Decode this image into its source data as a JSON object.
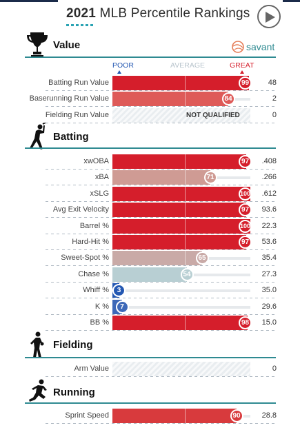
{
  "header": {
    "title_year": "2021",
    "title_rest": " MLB Percentile Rankings",
    "play_icon": "play-icon"
  },
  "brand": {
    "name": "savant",
    "icon": "savant-logo-icon"
  },
  "scale": {
    "poor": "POOR",
    "average": "AVERAGE",
    "great": "GREAT"
  },
  "colors": {
    "great": "#d51e2b",
    "poor": "#2458b2",
    "section_rule": "#2e8a91"
  },
  "sections": {
    "value": {
      "title": "Value",
      "icon": "trophy-icon",
      "rows": [
        {
          "label": "Batting Run Value",
          "percentile": 99,
          "value": "48",
          "color": "#d51e2b"
        },
        {
          "label": "Baserunning Run Value",
          "percentile": 84,
          "value": "2",
          "color": "#de5a58"
        },
        {
          "label": "Fielding Run Value",
          "percentile": null,
          "value": "0",
          "status": "NOT QUALIFIED"
        }
      ]
    },
    "batting": {
      "title": "Batting",
      "icon": "batter-icon",
      "rows": [
        {
          "label": "xwOBA",
          "percentile": 97,
          "value": ".408",
          "color": "#d51e2b"
        },
        {
          "label": "xBA",
          "percentile": 71,
          "value": ".266",
          "color": "#cf9b94"
        },
        {
          "label": "xSLG",
          "percentile": 100,
          "value": ".612",
          "color": "#d51e2b"
        },
        {
          "label": "Avg Exit Velocity",
          "percentile": 97,
          "value": "93.6",
          "color": "#d51e2b"
        },
        {
          "label": "Barrel %",
          "percentile": 100,
          "value": "22.3",
          "color": "#d51e2b"
        },
        {
          "label": "Hard-Hit %",
          "percentile": 97,
          "value": "53.6",
          "color": "#d51e2b"
        },
        {
          "label": "Sweet-Spot %",
          "percentile": 65,
          "value": "35.4",
          "color": "#c9aaa7"
        },
        {
          "label": "Chase %",
          "percentile": 54,
          "value": "27.3",
          "color": "#b8cfd3"
        },
        {
          "label": "Whiff %",
          "percentile": 3,
          "value": "35.0",
          "color": "#2458b2"
        },
        {
          "label": "K %",
          "percentile": 7,
          "value": "29.6",
          "color": "#3d68b8"
        },
        {
          "label": "BB %",
          "percentile": 98,
          "value": "15.0",
          "color": "#d51e2b"
        }
      ]
    },
    "fielding": {
      "title": "Fielding",
      "icon": "fielder-icon",
      "rows": [
        {
          "label": "Arm Value",
          "percentile": null,
          "value": "0",
          "status": ""
        }
      ]
    },
    "running": {
      "title": "Running",
      "icon": "runner-icon",
      "rows": [
        {
          "label": "Sprint Speed",
          "percentile": 90,
          "value": "28.8",
          "color": "#d83a3d"
        }
      ]
    }
  }
}
